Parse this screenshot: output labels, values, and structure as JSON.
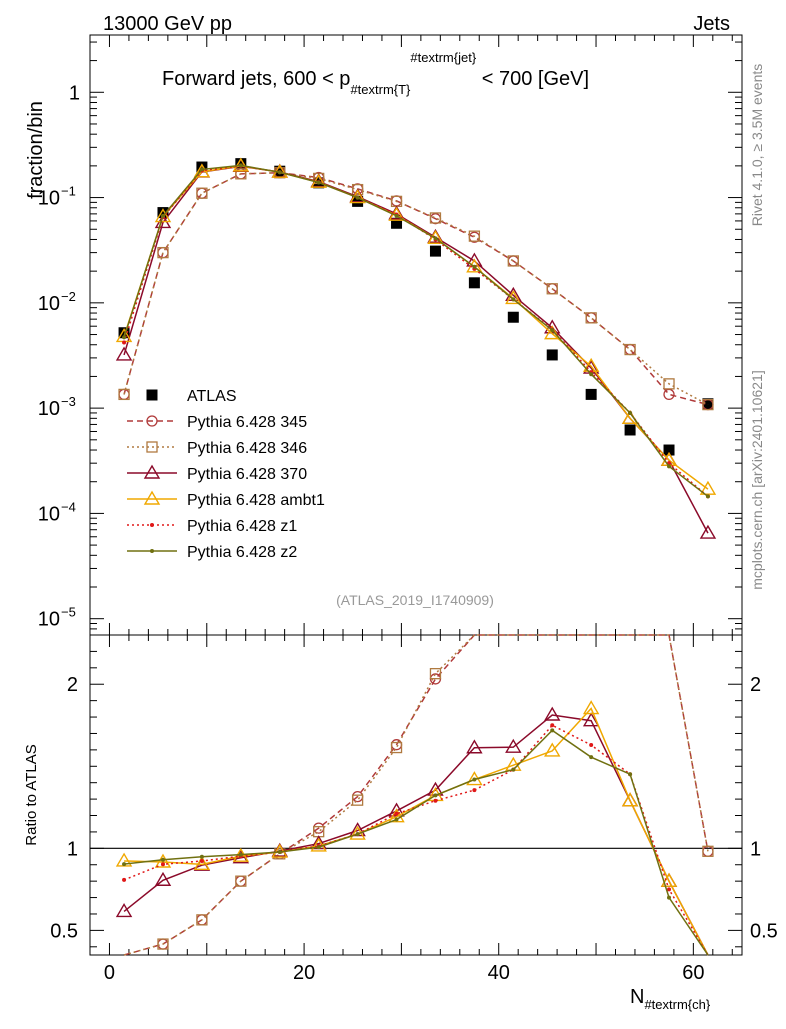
{
  "header": {
    "left": "13000 GeV pp",
    "right": "Jets"
  },
  "side_labels": {
    "rivet": "Rivet 4.1.0, ≥ 3.5M events",
    "mcplots": "mcplots.cern.ch [arXiv:2401.10621]"
  },
  "chart_data": {
    "type": "line",
    "title": "Forward jets, 600 < p_{#textrm{T}}^{#textrm{jet}} < 700 [GeV]",
    "title_parts": {
      "pre": "Forward jets, 600 < p",
      "sub": "#textrm{T}",
      "sup": "#textrm{jet}",
      "post": " < 700 [GeV]"
    },
    "analysis_id": "(ATLAS_2019_I1740909)",
    "xlabel": "N_{#textrm{ch}}",
    "xlabel_main": "N",
    "xlabel_sub": "#textrm{ch}",
    "ylabel": "fraction/bin",
    "ratio_ylabel": "Ratio to ATLAS",
    "xlim": [
      -2,
      65
    ],
    "ylim": [
      7e-06,
      3.5
    ],
    "ratio_ylim": [
      0.35,
      2.3
    ],
    "x_ticks": [
      "0",
      "20",
      "40",
      "60"
    ],
    "y_ticks": [
      "1",
      "10^{-1}",
      "10^{-2}",
      "10^{-3}",
      "10^{-4}",
      "10^{-5}"
    ],
    "ratio_ticks": [
      "0.5",
      "1",
      "2"
    ],
    "x": [
      1.5,
      5.5,
      9.5,
      13.5,
      17.5,
      21.5,
      25.5,
      29.5,
      33.5,
      37.5,
      41.5,
      45.5,
      49.5,
      53.5,
      57.5,
      61.5
    ],
    "data": {
      "name": "ATLAS",
      "values": [
        0.0052,
        0.072,
        0.195,
        0.21,
        0.178,
        0.138,
        0.092,
        0.057,
        0.031,
        0.0155,
        0.0073,
        0.0032,
        0.00135,
        0.00062,
        0.0004,
        0.0011
      ]
    },
    "series": [
      {
        "name": "Pythia 6.428 345",
        "color": "#b03a3a",
        "marker": "circle",
        "dash": "dashed",
        "values": [
          0.00135,
          0.03,
          0.11,
          0.168,
          0.172,
          0.155,
          0.121,
          0.093,
          0.063,
          0.042,
          0.025,
          0.0136,
          0.0072,
          0.0036,
          0.00135,
          0.00108
        ]
      },
      {
        "name": "Pythia 6.428 346",
        "color": "#b07a40",
        "marker": "square",
        "dash": "dotted",
        "values": [
          0.00135,
          0.03,
          0.11,
          0.168,
          0.172,
          0.152,
          0.119,
          0.092,
          0.064,
          0.043,
          0.025,
          0.0136,
          0.0072,
          0.0036,
          0.0017,
          0.00108
        ]
      },
      {
        "name": "Pythia 6.428 370",
        "color": "#8b0a2a",
        "marker": "triangle",
        "dash": "solid",
        "values": [
          0.0032,
          0.058,
          0.175,
          0.198,
          0.175,
          0.142,
          0.102,
          0.07,
          0.042,
          0.025,
          0.0118,
          0.0058,
          0.0024,
          0.0008,
          0.00032,
          6.5e-05
        ]
      },
      {
        "name": "Pythia 6.428 ambt1",
        "color": "#f0a800",
        "marker": "triangle",
        "dash": "solid",
        "values": [
          0.0048,
          0.066,
          0.176,
          0.2,
          0.174,
          0.14,
          0.1,
          0.068,
          0.041,
          0.022,
          0.011,
          0.0051,
          0.0025,
          0.0008,
          0.00032,
          0.00017
        ]
      },
      {
        "name": "Pythia 6.428 z1",
        "color": "#e01818",
        "marker": "dot",
        "dash": "dotted",
        "values": [
          0.0042,
          0.065,
          0.18,
          0.2,
          0.174,
          0.14,
          0.1,
          0.069,
          0.04,
          0.021,
          0.0108,
          0.0056,
          0.0022,
          0.0009,
          0.0003,
          0.000145
        ]
      },
      {
        "name": "Pythia 6.428 z2",
        "color": "#707010",
        "marker": "dot",
        "dash": "solid",
        "values": [
          0.0047,
          0.067,
          0.185,
          0.202,
          0.174,
          0.139,
          0.1,
          0.067,
          0.041,
          0.022,
          0.0108,
          0.0055,
          0.0021,
          0.0009,
          0.00028,
          0.000145
        ]
      }
    ]
  }
}
